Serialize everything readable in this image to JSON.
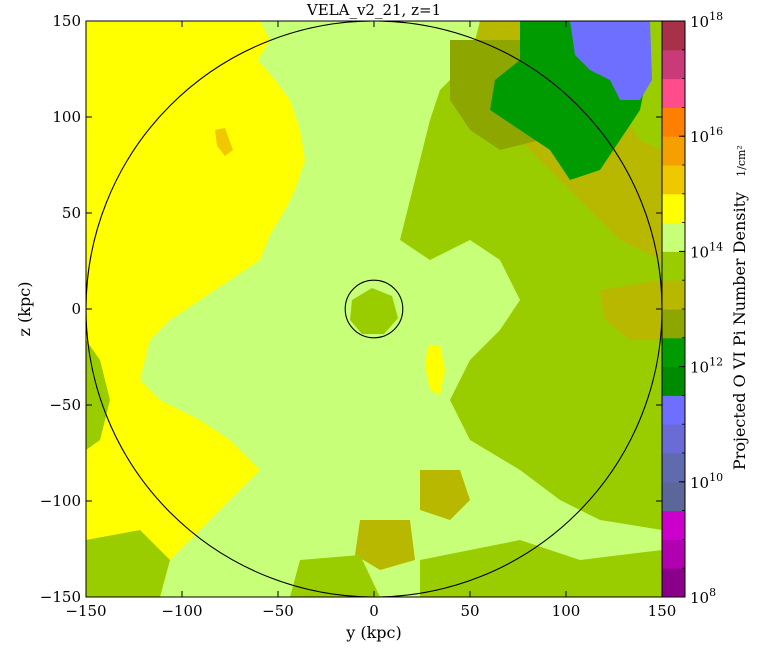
{
  "chart_data": {
    "type": "heatmap",
    "title": "VELA_v2_21, z=1",
    "xlabel": "y (kpc)",
    "ylabel": "z (kpc)",
    "colorbar_label": "Projected O VI Pi Number Density",
    "colorbar_unit": "1/cm²",
    "xlim": [
      -150,
      150
    ],
    "ylim": [
      -150,
      150
    ],
    "xticks": [
      -150,
      -100,
      -50,
      0,
      50,
      100,
      150
    ],
    "yticks": [
      -150,
      -100,
      -50,
      0,
      50,
      100,
      150
    ],
    "xtick_labels": [
      "−150",
      "−100",
      "−50",
      "0",
      "50",
      "100",
      "150"
    ],
    "ytick_labels": [
      "−150",
      "−100",
      "−50",
      "0",
      "50",
      "100",
      "150"
    ],
    "colorbar_scale": "log",
    "colorbar_range": [
      100000000.0,
      1e+18
    ],
    "colorbar_ticks": [
      {
        "value": 8,
        "label": "10",
        "exp": "8"
      },
      {
        "value": 10,
        "label": "10",
        "exp": "10"
      },
      {
        "value": 12,
        "label": "10",
        "exp": "12"
      },
      {
        "value": 14,
        "label": "10",
        "exp": "14"
      },
      {
        "value": 16,
        "label": "10",
        "exp": "16"
      },
      {
        "value": 18,
        "label": "10",
        "exp": "18"
      }
    ],
    "colorbar_bins": [
      {
        "from": 8.0,
        "to": 8.5,
        "color": "#8b008b"
      },
      {
        "from": 8.5,
        "to": 9.0,
        "color": "#b000b0"
      },
      {
        "from": 9.0,
        "to": 9.5,
        "color": "#cc00cc"
      },
      {
        "from": 9.5,
        "to": 10.0,
        "color": "#5b6799"
      },
      {
        "from": 10.0,
        "to": 10.5,
        "color": "#5f6aaf"
      },
      {
        "from": 10.5,
        "to": 11.0,
        "color": "#6b6bd6"
      },
      {
        "from": 11.0,
        "to": 11.5,
        "color": "#6e6eff"
      },
      {
        "from": 11.5,
        "to": 12.0,
        "color": "#008a00"
      },
      {
        "from": 12.0,
        "to": 12.5,
        "color": "#009b00"
      },
      {
        "from": 12.5,
        "to": 13.0,
        "color": "#8ea600"
      },
      {
        "from": 13.0,
        "to": 13.5,
        "color": "#b8b800"
      },
      {
        "from": 13.5,
        "to": 14.0,
        "color": "#9acd00"
      },
      {
        "from": 14.0,
        "to": 14.5,
        "color": "#c8ff78"
      },
      {
        "from": 14.5,
        "to": 15.0,
        "color": "#ffff00"
      },
      {
        "from": 15.0,
        "to": 15.5,
        "color": "#f0c800"
      },
      {
        "from": 15.5,
        "to": 16.0,
        "color": "#f5a000"
      },
      {
        "from": 16.0,
        "to": 16.5,
        "color": "#ff8000"
      },
      {
        "from": 16.5,
        "to": 17.0,
        "color": "#ff4c8a"
      },
      {
        "from": 17.0,
        "to": 17.5,
        "color": "#c83a78"
      },
      {
        "from": 17.5,
        "to": 18.0,
        "color": "#a83048"
      }
    ],
    "circles_kpc": [
      {
        "cx": 0,
        "cy": 0,
        "r": 150
      },
      {
        "cx": 0,
        "cy": 0,
        "r": 15
      }
    ],
    "regions": [
      {
        "name": "background",
        "level": 14.2,
        "x_range": [
          -150,
          150
        ],
        "y_range": [
          -150,
          150
        ]
      },
      {
        "name": "yellow-left",
        "level": 14.7,
        "x_range": [
          -150,
          -55
        ],
        "y_range": [
          -150,
          150
        ]
      },
      {
        "name": "green-right",
        "level": 13.3,
        "x_range": [
          30,
          150
        ],
        "y_range": [
          -150,
          150
        ]
      },
      {
        "name": "olive-upper-right",
        "level": 12.8,
        "x_range": [
          40,
          150
        ],
        "y_range": [
          60,
          150
        ]
      },
      {
        "name": "dark-green-top-right",
        "level": 12.2,
        "x_range": [
          60,
          130
        ],
        "y_range": [
          75,
          150
        ]
      },
      {
        "name": "blue-corner",
        "level": 11.2,
        "x_range": [
          100,
          140
        ],
        "y_range": [
          110,
          150
        ]
      },
      {
        "name": "orange-speck",
        "level": 15.3,
        "x_range": [
          -82,
          -74
        ],
        "y_range": [
          80,
          90
        ]
      },
      {
        "name": "yellow-center-streak",
        "level": 14.7,
        "x_range": [
          25,
          40
        ],
        "y_range": [
          -60,
          -25
        ]
      }
    ]
  }
}
